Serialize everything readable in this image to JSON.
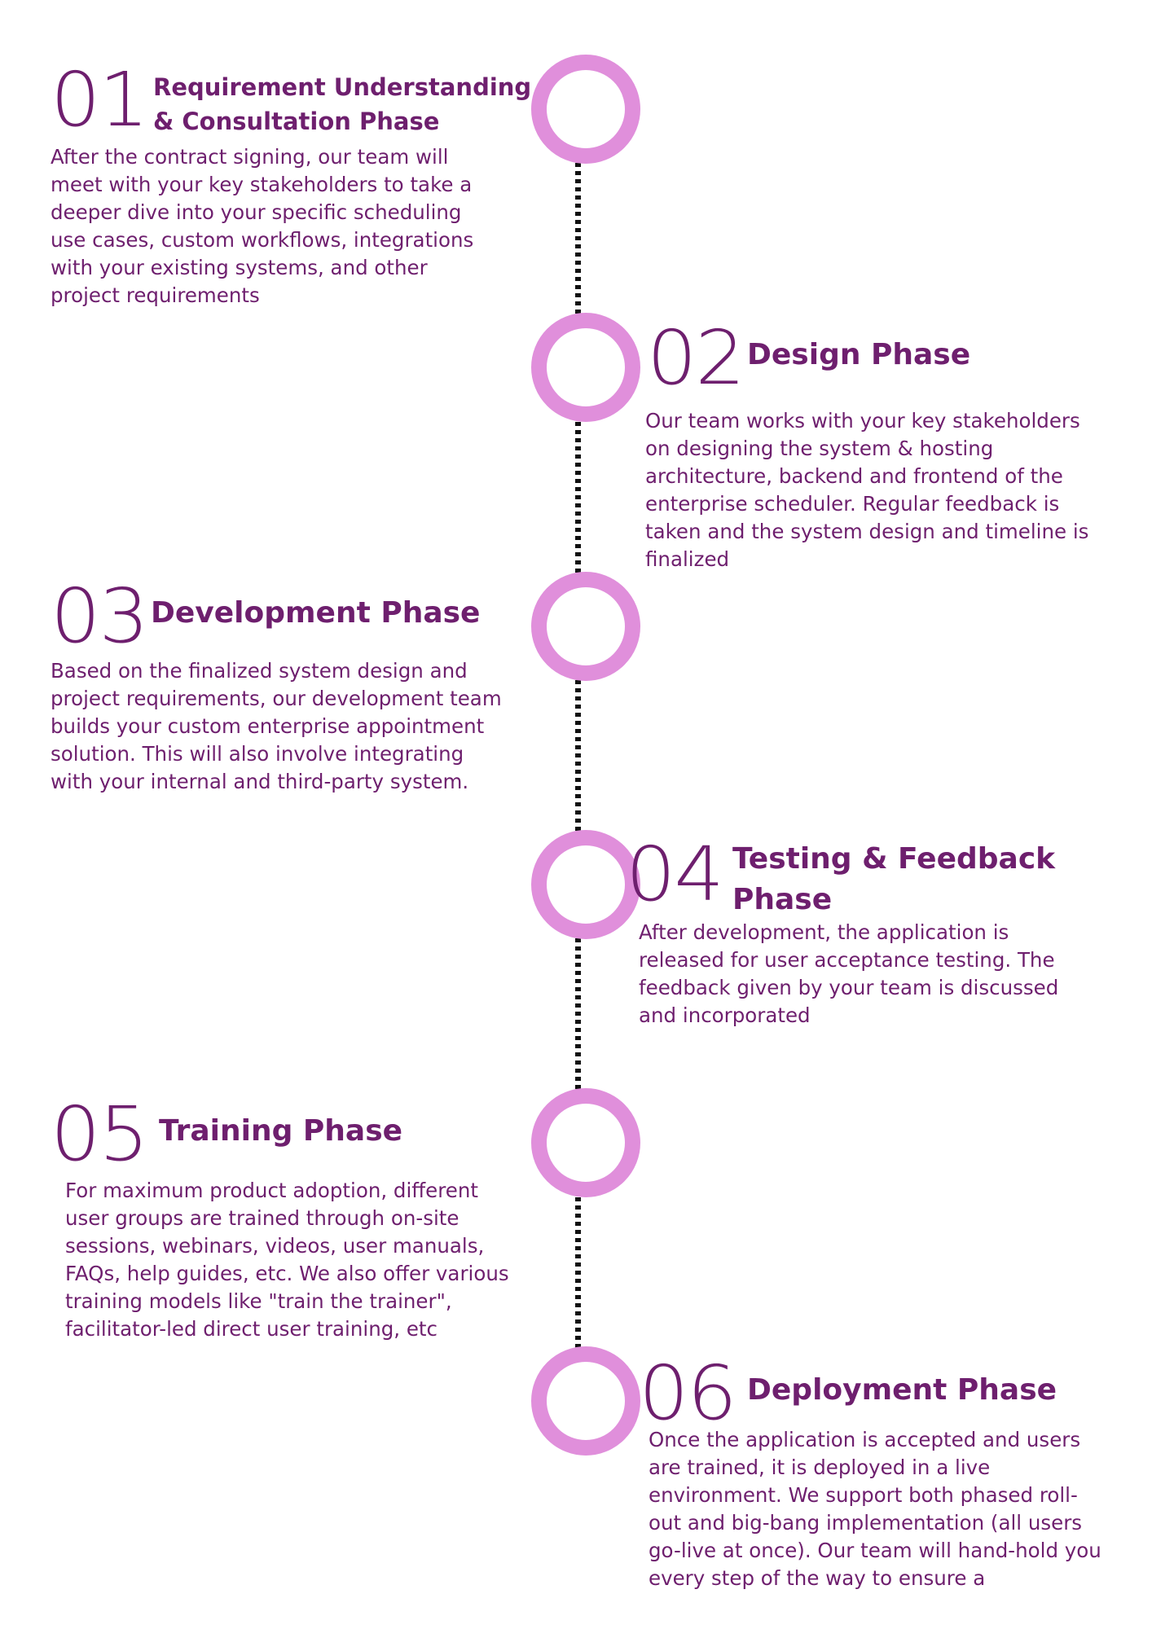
{
  "phases": [
    {
      "number": "01",
      "title": "Requirement Understanding\n& Consultation Phase",
      "description": "After the contract signing, our team will\nmeet with your key stakeholders to take a\ndeeper dive into your specific scheduling\nuse cases, custom workflows, integrations\nwith your existing systems, and other\nproject requirements"
    },
    {
      "number": "02",
      "title": "Design Phase",
      "description": "Our team works with your key stakeholders\non designing the system & hosting\narchitecture, backend and frontend of the\nenterprise scheduler. Regular feedback is\ntaken and the system design and timeline is\nfinalized"
    },
    {
      "number": "03",
      "title": "Development Phase",
      "description": "Based on the finalized system design and\nproject requirements, our development team\nbuilds your custom enterprise appointment\nsolution. This will also involve integrating\nwith your internal and third-party system."
    },
    {
      "number": "04",
      "title": "Testing & Feedback\nPhase",
      "description": "After development, the application is\nreleased for user acceptance testing. The\nfeedback given by your team is discussed\nand incorporated"
    },
    {
      "number": "05",
      "title": "Training Phase",
      "description": "For maximum product adoption, different\nuser groups are trained through on-site\nsessions, webinars, videos, user manuals,\nFAQs, help guides, etc. We also offer various\ntraining models like \"train the trainer\",\nfacilitator-led direct user training, etc"
    },
    {
      "number": "06",
      "title": "Deployment Phase",
      "description": "Once the application is accepted and users\nare trained, it is deployed in a live\nenvironment. We support both phased roll-\nout and big-bang implementation (all users\ngo-live at once). Our team will hand-hold you\nevery step of the way to ensure a"
    }
  ],
  "colors": {
    "text": "#6e1f6e",
    "ring": "#e08fdb",
    "connector": "#111111"
  }
}
